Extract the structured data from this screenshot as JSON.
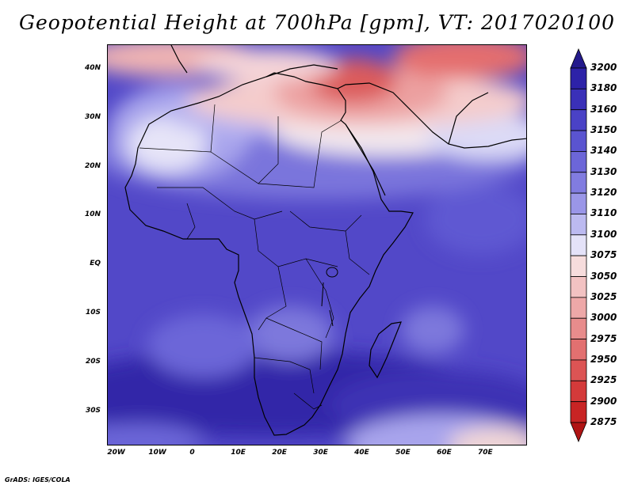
{
  "title": "Geopotential Height at 700hPa [gpm], VT: 2017020100",
  "footer": "GrADS: IGES/COLA",
  "map": {
    "lon_range": [
      -22,
      80
    ],
    "lat_range": [
      -37,
      45
    ],
    "lon_ticks": [
      {
        "lon": -20,
        "label": "20W"
      },
      {
        "lon": -10,
        "label": "10W"
      },
      {
        "lon": 0,
        "label": "0"
      },
      {
        "lon": 10,
        "label": "10E"
      },
      {
        "lon": 20,
        "label": "20E"
      },
      {
        "lon": 30,
        "label": "30E"
      },
      {
        "lon": 40,
        "label": "40E"
      },
      {
        "lon": 50,
        "label": "50E"
      },
      {
        "lon": 60,
        "label": "60E"
      },
      {
        "lon": 70,
        "label": "70E"
      }
    ],
    "lat_ticks": [
      {
        "lat": 40,
        "label": "40N"
      },
      {
        "lat": 30,
        "label": "30N"
      },
      {
        "lat": 20,
        "label": "20N"
      },
      {
        "lat": 10,
        "label": "10N"
      },
      {
        "lat": 0,
        "label": "EQ"
      },
      {
        "lat": -10,
        "label": "10S"
      },
      {
        "lat": -20,
        "label": "20S"
      },
      {
        "lat": -30,
        "label": "30S"
      }
    ]
  },
  "colorbar": {
    "levels": [
      "3200",
      "3180",
      "3160",
      "3150",
      "3140",
      "3130",
      "3120",
      "3110",
      "3100",
      "3075",
      "3050",
      "3025",
      "3000",
      "2975",
      "2950",
      "2925",
      "2900",
      "2875"
    ],
    "colors": [
      "#241a8c",
      "#2d22a8",
      "#3a30b8",
      "#4a42c6",
      "#5a54d0",
      "#6c66d8",
      "#817ce0",
      "#9a96e8",
      "#bcbaf0",
      "#e4e2f8",
      "#f6dcdc",
      "#f2c2c2",
      "#eea8a8",
      "#e88c8c",
      "#e27070",
      "#dc5454",
      "#d43a3a",
      "#c82424",
      "#b01414"
    ]
  }
}
